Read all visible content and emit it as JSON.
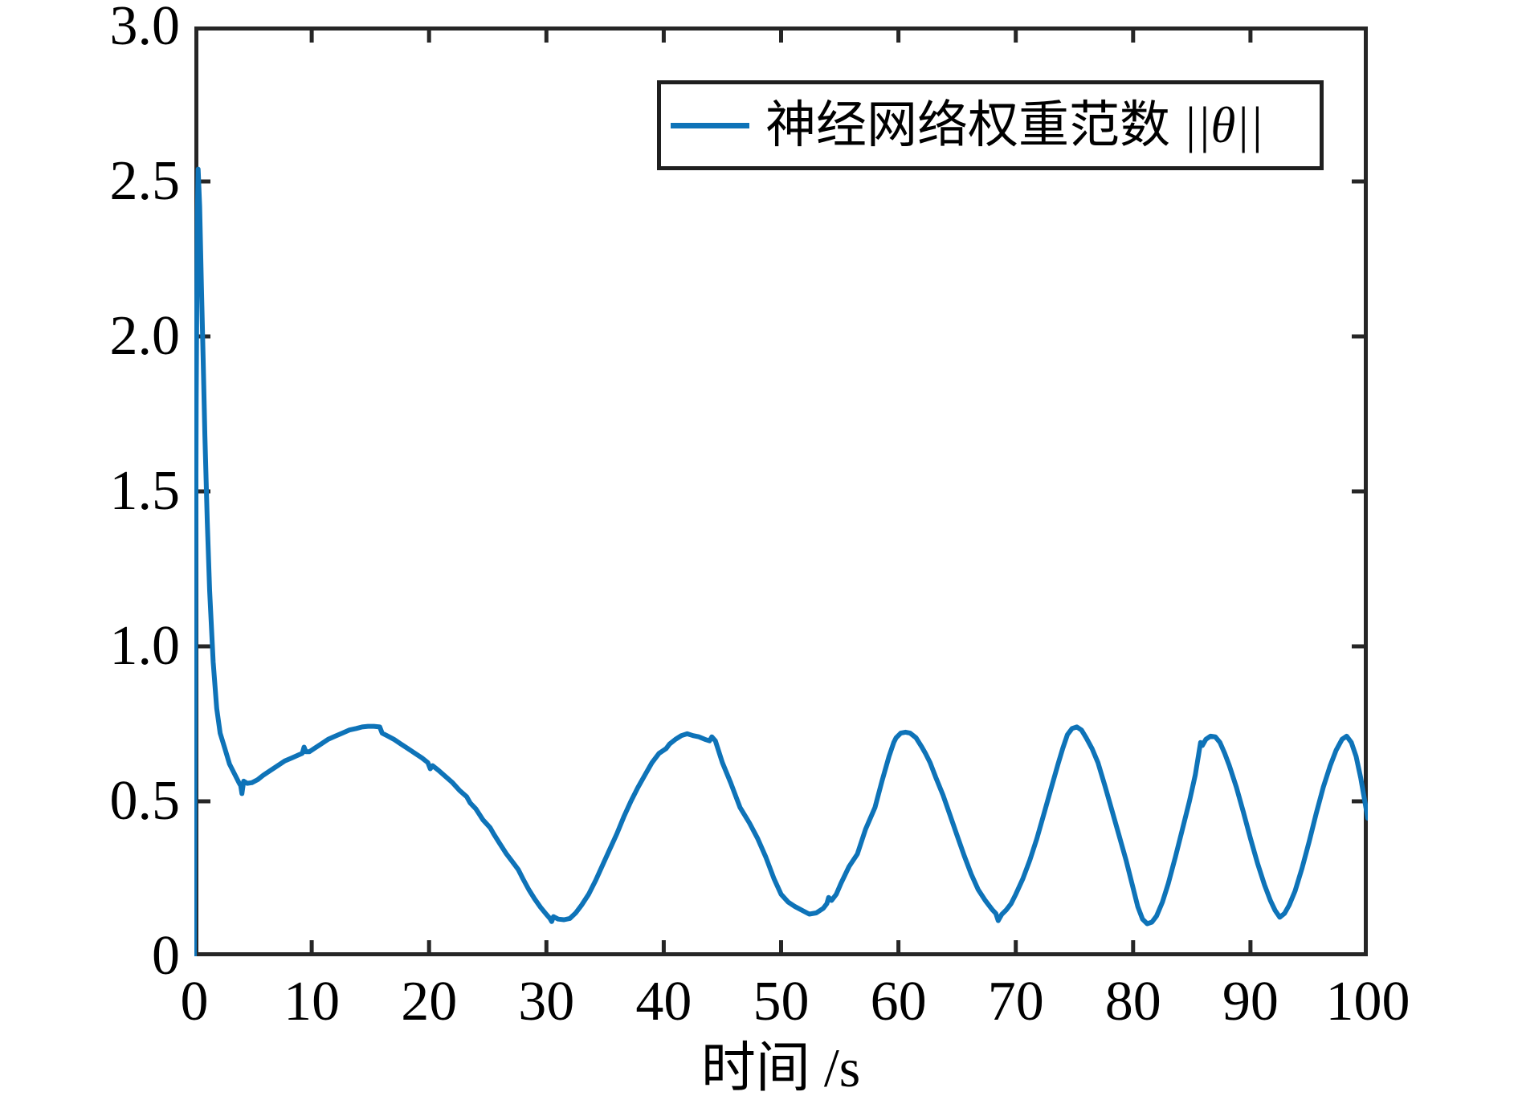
{
  "page": {
    "background": "#ffffff"
  },
  "chart_data": {
    "type": "line",
    "title": "",
    "xlabel": "时间 /s",
    "ylabel": "",
    "xlim": [
      0,
      100
    ],
    "ylim": [
      0,
      3
    ],
    "x_ticks": [
      0,
      10,
      20,
      30,
      40,
      50,
      60,
      70,
      80,
      90,
      100
    ],
    "x_tick_labels": [
      "0",
      "10",
      "20",
      "30",
      "40",
      "50",
      "60",
      "70",
      "80",
      "90",
      "100"
    ],
    "y_ticks": [
      0,
      0.5,
      1.0,
      1.5,
      2.0,
      2.5,
      3.0
    ],
    "y_tick_labels": [
      "0",
      "0.5",
      "1.0",
      "1.5",
      "2.0",
      "2.5",
      "3.0"
    ],
    "grid": false,
    "axis_color": "#262626",
    "legend": {
      "position": "top-right-inside",
      "label_text": "神经网络权重范数 ",
      "label_math": "||θ||"
    },
    "series": [
      {
        "name": "神经网络权重范数 ||θ||",
        "color": "#0e73b8",
        "points": [
          [
            0,
            0
          ],
          [
            0.08,
            0.9
          ],
          [
            0.16,
            1.8
          ],
          [
            0.25,
            2.4
          ],
          [
            0.32,
            2.54
          ],
          [
            0.45,
            2.42
          ],
          [
            0.6,
            2.16
          ],
          [
            0.75,
            1.92
          ],
          [
            0.9,
            1.68
          ],
          [
            1.1,
            1.4
          ],
          [
            1.3,
            1.18
          ],
          [
            1.6,
            0.95
          ],
          [
            1.9,
            0.8
          ],
          [
            2.2,
            0.72
          ],
          [
            2.6,
            0.67
          ],
          [
            3.0,
            0.62
          ],
          [
            3.4,
            0.59
          ],
          [
            3.8,
            0.56
          ],
          [
            3.95,
            0.55
          ],
          [
            4.05,
            0.525
          ],
          [
            4.2,
            0.565
          ],
          [
            4.5,
            0.558
          ],
          [
            4.9,
            0.56
          ],
          [
            5.4,
            0.57
          ],
          [
            5.9,
            0.585
          ],
          [
            6.5,
            0.6
          ],
          [
            7.1,
            0.615
          ],
          [
            7.7,
            0.63
          ],
          [
            8.3,
            0.64
          ],
          [
            8.9,
            0.65
          ],
          [
            9.2,
            0.655
          ],
          [
            9.35,
            0.675
          ],
          [
            9.5,
            0.66
          ],
          [
            9.8,
            0.66
          ],
          [
            10.2,
            0.67
          ],
          [
            10.8,
            0.685
          ],
          [
            11.4,
            0.7
          ],
          [
            12.0,
            0.71
          ],
          [
            12.6,
            0.72
          ],
          [
            13.2,
            0.73
          ],
          [
            13.8,
            0.735
          ],
          [
            14.3,
            0.74
          ],
          [
            14.8,
            0.742
          ],
          [
            15.3,
            0.742
          ],
          [
            15.8,
            0.74
          ],
          [
            16.0,
            0.72
          ],
          [
            16.5,
            0.71
          ],
          [
            17.0,
            0.7
          ],
          [
            17.6,
            0.685
          ],
          [
            18.2,
            0.67
          ],
          [
            18.8,
            0.655
          ],
          [
            19.4,
            0.64
          ],
          [
            19.9,
            0.625
          ],
          [
            20.1,
            0.605
          ],
          [
            20.3,
            0.615
          ],
          [
            20.8,
            0.6
          ],
          [
            21.4,
            0.58
          ],
          [
            22.0,
            0.56
          ],
          [
            22.6,
            0.535
          ],
          [
            23.2,
            0.515
          ],
          [
            23.5,
            0.495
          ],
          [
            24.0,
            0.475
          ],
          [
            24.6,
            0.44
          ],
          [
            25.2,
            0.415
          ],
          [
            25.5,
            0.395
          ],
          [
            26.0,
            0.365
          ],
          [
            26.6,
            0.33
          ],
          [
            27.2,
            0.3
          ],
          [
            27.6,
            0.28
          ],
          [
            28.0,
            0.25
          ],
          [
            28.5,
            0.215
          ],
          [
            29.0,
            0.185
          ],
          [
            29.5,
            0.158
          ],
          [
            30.0,
            0.135
          ],
          [
            30.3,
            0.122
          ],
          [
            30.45,
            0.112
          ],
          [
            30.6,
            0.128
          ],
          [
            31.0,
            0.12
          ],
          [
            31.5,
            0.118
          ],
          [
            32.0,
            0.122
          ],
          [
            32.5,
            0.14
          ],
          [
            33.0,
            0.165
          ],
          [
            33.6,
            0.2
          ],
          [
            34.2,
            0.245
          ],
          [
            34.8,
            0.295
          ],
          [
            35.4,
            0.345
          ],
          [
            36.0,
            0.395
          ],
          [
            36.6,
            0.45
          ],
          [
            37.2,
            0.5
          ],
          [
            37.8,
            0.545
          ],
          [
            38.4,
            0.585
          ],
          [
            39.0,
            0.625
          ],
          [
            39.6,
            0.655
          ],
          [
            40.2,
            0.67
          ],
          [
            40.5,
            0.685
          ],
          [
            41.0,
            0.7
          ],
          [
            41.5,
            0.712
          ],
          [
            42.0,
            0.718
          ],
          [
            42.5,
            0.712
          ],
          [
            43.0,
            0.708
          ],
          [
            43.5,
            0.7
          ],
          [
            43.9,
            0.695
          ],
          [
            44.1,
            0.708
          ],
          [
            44.4,
            0.695
          ],
          [
            45.0,
            0.625
          ],
          [
            45.7,
            0.56
          ],
          [
            46.5,
            0.48
          ],
          [
            47.3,
            0.43
          ],
          [
            48.0,
            0.38
          ],
          [
            48.7,
            0.32
          ],
          [
            49.4,
            0.25
          ],
          [
            50.0,
            0.2
          ],
          [
            50.6,
            0.175
          ],
          [
            51.2,
            0.16
          ],
          [
            51.8,
            0.148
          ],
          [
            52.4,
            0.136
          ],
          [
            53.0,
            0.14
          ],
          [
            53.6,
            0.155
          ],
          [
            53.9,
            0.17
          ],
          [
            54.05,
            0.19
          ],
          [
            54.3,
            0.18
          ],
          [
            54.7,
            0.2
          ],
          [
            55.1,
            0.235
          ],
          [
            55.8,
            0.29
          ],
          [
            56.5,
            0.33
          ],
          [
            57.2,
            0.41
          ],
          [
            58.0,
            0.48
          ],
          [
            58.6,
            0.565
          ],
          [
            59.2,
            0.645
          ],
          [
            59.6,
            0.69
          ],
          [
            59.8,
            0.705
          ],
          [
            60.2,
            0.72
          ],
          [
            60.6,
            0.723
          ],
          [
            61.0,
            0.72
          ],
          [
            61.5,
            0.705
          ],
          [
            62.0,
            0.675
          ],
          [
            62.3,
            0.655
          ],
          [
            62.7,
            0.625
          ],
          [
            63.2,
            0.575
          ],
          [
            63.8,
            0.52
          ],
          [
            64.4,
            0.455
          ],
          [
            65.0,
            0.39
          ],
          [
            65.6,
            0.325
          ],
          [
            66.2,
            0.265
          ],
          [
            66.8,
            0.215
          ],
          [
            67.4,
            0.18
          ],
          [
            68.0,
            0.15
          ],
          [
            68.3,
            0.138
          ],
          [
            68.5,
            0.115
          ],
          [
            68.8,
            0.135
          ],
          [
            69.2,
            0.15
          ],
          [
            69.6,
            0.17
          ],
          [
            70.0,
            0.2
          ],
          [
            70.6,
            0.25
          ],
          [
            71.2,
            0.31
          ],
          [
            71.8,
            0.38
          ],
          [
            72.4,
            0.46
          ],
          [
            73.0,
            0.54
          ],
          [
            73.6,
            0.62
          ],
          [
            74.0,
            0.67
          ],
          [
            74.4,
            0.715
          ],
          [
            74.8,
            0.735
          ],
          [
            75.2,
            0.74
          ],
          [
            75.6,
            0.73
          ],
          [
            76.0,
            0.705
          ],
          [
            76.5,
            0.67
          ],
          [
            77.0,
            0.625
          ],
          [
            77.6,
            0.55
          ],
          [
            78.2,
            0.47
          ],
          [
            78.8,
            0.39
          ],
          [
            79.4,
            0.31
          ],
          [
            80.0,
            0.22
          ],
          [
            80.4,
            0.16
          ],
          [
            80.8,
            0.12
          ],
          [
            81.2,
            0.105
          ],
          [
            81.6,
            0.11
          ],
          [
            82.0,
            0.13
          ],
          [
            82.5,
            0.175
          ],
          [
            83.0,
            0.235
          ],
          [
            83.6,
            0.32
          ],
          [
            84.2,
            0.41
          ],
          [
            84.8,
            0.5
          ],
          [
            85.3,
            0.585
          ],
          [
            85.6,
            0.655
          ],
          [
            85.75,
            0.69
          ],
          [
            85.9,
            0.68
          ],
          [
            86.2,
            0.7
          ],
          [
            86.6,
            0.71
          ],
          [
            87.0,
            0.708
          ],
          [
            87.4,
            0.69
          ],
          [
            87.8,
            0.655
          ],
          [
            88.2,
            0.615
          ],
          [
            88.8,
            0.545
          ],
          [
            89.4,
            0.465
          ],
          [
            90.0,
            0.38
          ],
          [
            90.6,
            0.3
          ],
          [
            91.2,
            0.23
          ],
          [
            91.7,
            0.18
          ],
          [
            92.1,
            0.148
          ],
          [
            92.5,
            0.126
          ],
          [
            92.9,
            0.138
          ],
          [
            93.3,
            0.165
          ],
          [
            93.8,
            0.21
          ],
          [
            94.4,
            0.285
          ],
          [
            95.0,
            0.37
          ],
          [
            95.6,
            0.46
          ],
          [
            96.2,
            0.545
          ],
          [
            96.8,
            0.615
          ],
          [
            97.3,
            0.665
          ],
          [
            97.8,
            0.7
          ],
          [
            98.2,
            0.71
          ],
          [
            98.6,
            0.69
          ],
          [
            99.0,
            0.645
          ],
          [
            99.4,
            0.575
          ],
          [
            99.7,
            0.51
          ],
          [
            100,
            0.445
          ]
        ]
      }
    ]
  }
}
